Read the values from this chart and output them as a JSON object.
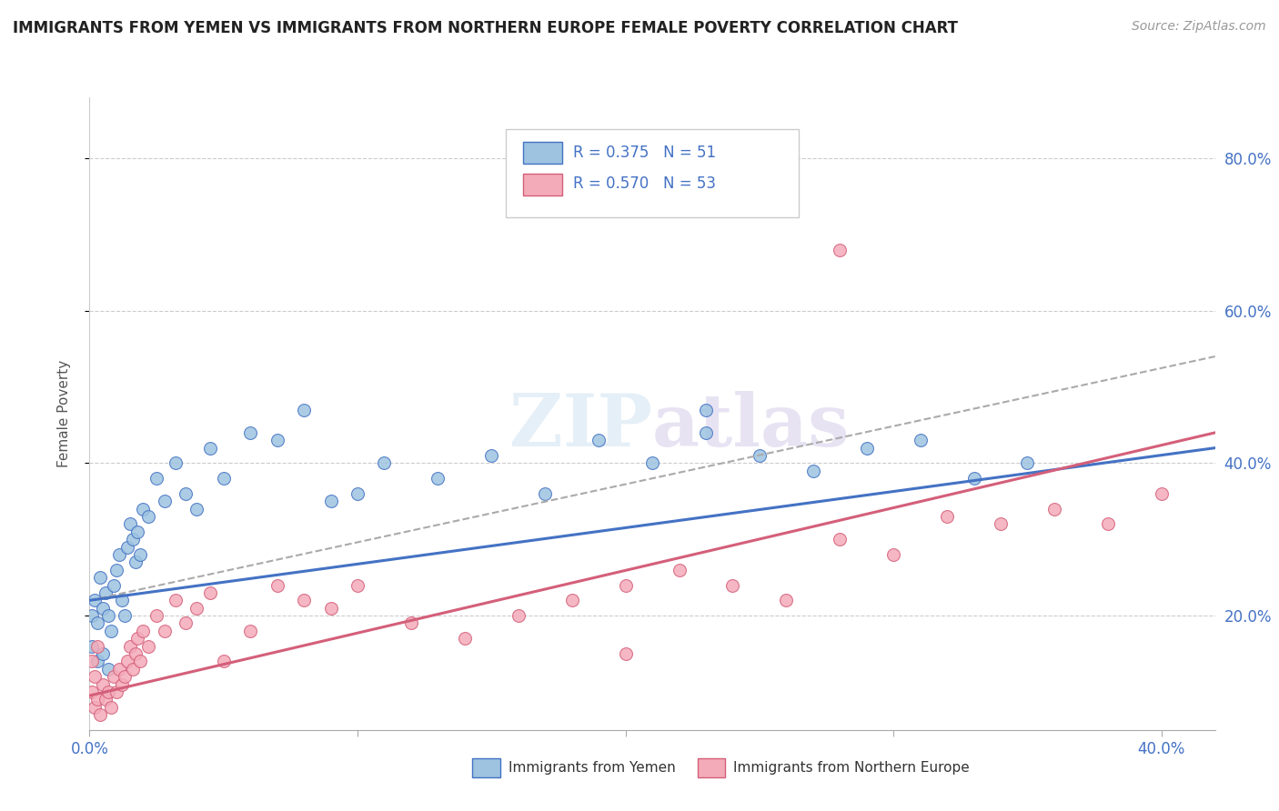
{
  "title": "IMMIGRANTS FROM YEMEN VS IMMIGRANTS FROM NORTHERN EUROPE FEMALE POVERTY CORRELATION CHART",
  "source": "Source: ZipAtlas.com",
  "ylabel": "Female Poverty",
  "yticks_labels": [
    "20.0%",
    "40.0%",
    "60.0%",
    "80.0%"
  ],
  "ytick_values": [
    0.2,
    0.4,
    0.6,
    0.8
  ],
  "xlim": [
    0.0,
    0.42
  ],
  "ylim": [
    0.05,
    0.88
  ],
  "watermark": "ZIPatlas",
  "legend_blue_r": "R = 0.375",
  "legend_blue_n": "N = 51",
  "legend_pink_r": "R = 0.570",
  "legend_pink_n": "N = 53",
  "blue_color": "#9dc3e0",
  "pink_color": "#f4abb9",
  "blue_edge_color": "#4472c4",
  "pink_edge_color": "#d45f7a",
  "trend_blue_color": "#4472c4",
  "trend_pink_color": "#d45f7a",
  "trend_blue_dashed_color": "#aaaaaa",
  "blue_scatter_x": [
    0.001,
    0.002,
    0.003,
    0.004,
    0.005,
    0.006,
    0.007,
    0.008,
    0.009,
    0.01,
    0.011,
    0.012,
    0.013,
    0.014,
    0.015,
    0.016,
    0.017,
    0.018,
    0.019,
    0.02,
    0.022,
    0.025,
    0.028,
    0.032,
    0.036,
    0.04,
    0.045,
    0.05,
    0.06,
    0.07,
    0.08,
    0.09,
    0.1,
    0.11,
    0.13,
    0.15,
    0.17,
    0.19,
    0.21,
    0.23,
    0.25,
    0.27,
    0.29,
    0.31,
    0.33,
    0.35,
    0.001,
    0.003,
    0.005,
    0.007,
    0.23
  ],
  "blue_scatter_y": [
    0.2,
    0.22,
    0.19,
    0.25,
    0.21,
    0.23,
    0.2,
    0.18,
    0.24,
    0.26,
    0.28,
    0.22,
    0.2,
    0.29,
    0.32,
    0.3,
    0.27,
    0.31,
    0.28,
    0.34,
    0.33,
    0.38,
    0.35,
    0.4,
    0.36,
    0.34,
    0.42,
    0.38,
    0.44,
    0.43,
    0.47,
    0.35,
    0.36,
    0.4,
    0.38,
    0.41,
    0.36,
    0.43,
    0.4,
    0.44,
    0.41,
    0.39,
    0.42,
    0.43,
    0.38,
    0.4,
    0.16,
    0.14,
    0.15,
    0.13,
    0.47
  ],
  "pink_scatter_x": [
    0.001,
    0.002,
    0.003,
    0.004,
    0.005,
    0.006,
    0.007,
    0.008,
    0.009,
    0.01,
    0.011,
    0.012,
    0.013,
    0.014,
    0.015,
    0.016,
    0.017,
    0.018,
    0.019,
    0.02,
    0.022,
    0.025,
    0.028,
    0.032,
    0.036,
    0.04,
    0.045,
    0.05,
    0.06,
    0.07,
    0.08,
    0.09,
    0.1,
    0.12,
    0.14,
    0.16,
    0.18,
    0.2,
    0.22,
    0.24,
    0.26,
    0.28,
    0.3,
    0.32,
    0.34,
    0.36,
    0.38,
    0.4,
    0.001,
    0.002,
    0.003,
    0.2,
    0.28
  ],
  "pink_scatter_y": [
    0.1,
    0.08,
    0.09,
    0.07,
    0.11,
    0.09,
    0.1,
    0.08,
    0.12,
    0.1,
    0.13,
    0.11,
    0.12,
    0.14,
    0.16,
    0.13,
    0.15,
    0.17,
    0.14,
    0.18,
    0.16,
    0.2,
    0.18,
    0.22,
    0.19,
    0.21,
    0.23,
    0.14,
    0.18,
    0.24,
    0.22,
    0.21,
    0.24,
    0.19,
    0.17,
    0.2,
    0.22,
    0.24,
    0.26,
    0.24,
    0.22,
    0.3,
    0.28,
    0.33,
    0.32,
    0.34,
    0.32,
    0.36,
    0.14,
    0.12,
    0.16,
    0.15,
    0.68
  ],
  "blue_trend_x0": 0.0,
  "blue_trend_x1": 0.42,
  "blue_trend_y0": 0.22,
  "blue_trend_y1": 0.42,
  "blue_dashed_trend_y1": 0.54,
  "pink_trend_x0": 0.0,
  "pink_trend_x1": 0.42,
  "pink_trend_y0": 0.095,
  "pink_trend_y1": 0.44
}
